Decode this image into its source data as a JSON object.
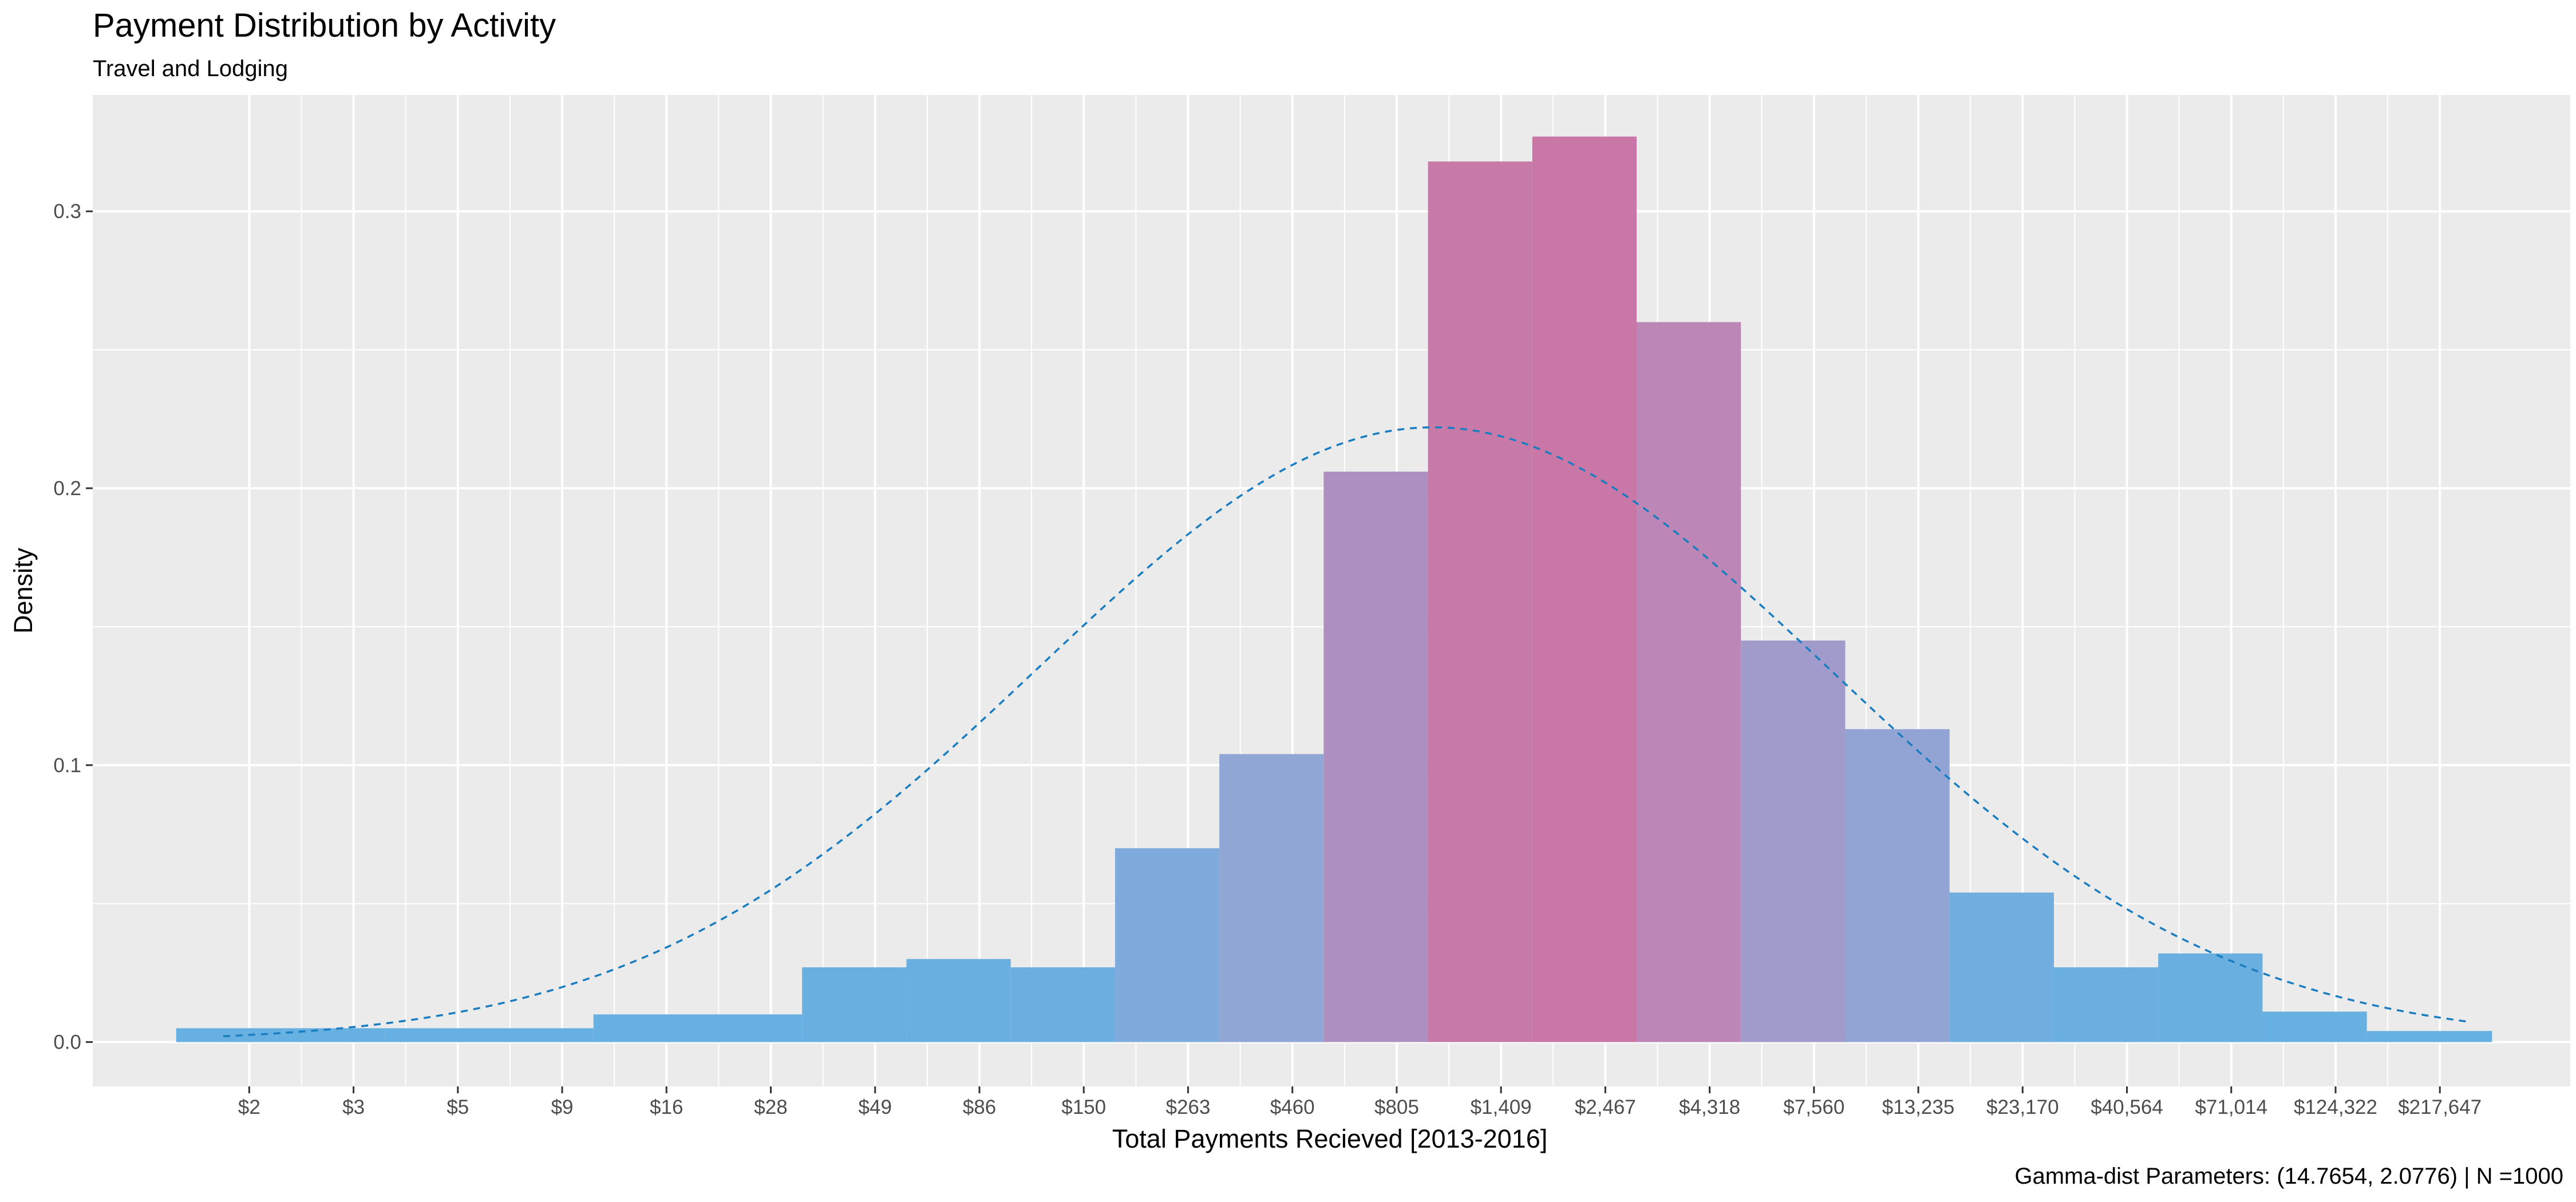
{
  "chart_data": {
    "type": "bar",
    "title": "Payment Distribution by Activity",
    "subtitle": "Travel and Lodging",
    "xlabel": "Total Payments Recieved [2013-2016]",
    "ylabel": "Density",
    "caption": "Gamma-dist Parameters: (14.7654, 2.0776) | N =1000",
    "x_axis_scale": "log",
    "x_tick_labels": [
      "$2",
      "$3",
      "$5",
      "$9",
      "$16",
      "$28",
      "$49",
      "$86",
      "$150",
      "$263",
      "$460",
      "$805",
      "$1,409",
      "$2,467",
      "$4,318",
      "$7,560",
      "$13,235",
      "$23,170",
      "$40,564",
      "$71,014",
      "$124,322",
      "$217,647"
    ],
    "y_ticks": [
      0.0,
      0.1,
      0.2,
      0.3
    ],
    "y_tick_labels": [
      "0.0",
      "0.1",
      "0.2",
      "0.3"
    ],
    "ylim": [
      -0.016,
      0.342
    ],
    "bars": [
      {
        "from": 0.3,
        "to": 2.3,
        "density": 0.005,
        "color": "#66b0e2"
      },
      {
        "from": 2.3,
        "to": 4.3,
        "density": 0.005,
        "color": "#66b0e2"
      },
      {
        "from": 4.3,
        "to": 6.3,
        "density": 0.01,
        "color": "#67b0e2"
      },
      {
        "from": 6.3,
        "to": 7.3,
        "density": 0.027,
        "color": "#69b0e1"
      },
      {
        "from": 7.3,
        "to": 8.3,
        "density": 0.03,
        "color": "#69b0e1"
      },
      {
        "from": 8.3,
        "to": 9.3,
        "density": 0.027,
        "color": "#6aafe0"
      },
      {
        "from": 9.3,
        "to": 10.3,
        "density": 0.07,
        "color": "#7eaadc"
      },
      {
        "from": 10.3,
        "to": 11.3,
        "density": 0.104,
        "color": "#90a6d4"
      },
      {
        "from": 11.3,
        "to": 12.3,
        "density": 0.206,
        "color": "#ae90c0"
      },
      {
        "from": 12.3,
        "to": 13.3,
        "density": 0.318,
        "color": "#c77aa8"
      },
      {
        "from": 13.3,
        "to": 14.3,
        "density": 0.327,
        "color": "#c977a6"
      },
      {
        "from": 14.3,
        "to": 15.3,
        "density": 0.26,
        "color": "#bc86b6"
      },
      {
        "from": 15.3,
        "to": 16.3,
        "density": 0.145,
        "color": "#a09bca"
      },
      {
        "from": 16.3,
        "to": 17.3,
        "density": 0.113,
        "color": "#92a4d4"
      },
      {
        "from": 17.3,
        "to": 18.3,
        "density": 0.054,
        "color": "#71aee0"
      },
      {
        "from": 18.3,
        "to": 19.3,
        "density": 0.027,
        "color": "#6aafe0"
      },
      {
        "from": 19.3,
        "to": 20.3,
        "density": 0.032,
        "color": "#69b0e1"
      },
      {
        "from": 20.3,
        "to": 21.3,
        "density": 0.011,
        "color": "#67b0e2"
      },
      {
        "from": 21.3,
        "to": 22.5,
        "density": 0.004,
        "color": "#66b0e2"
      }
    ],
    "fitted_curve": {
      "style": "dashed",
      "color": "#1a7dc0",
      "x_range": [
        0.75,
        22.25
      ],
      "peak_x": 12.35,
      "peak_y": 0.222,
      "sd": 3.8
    },
    "grid": true,
    "legend": "none"
  }
}
